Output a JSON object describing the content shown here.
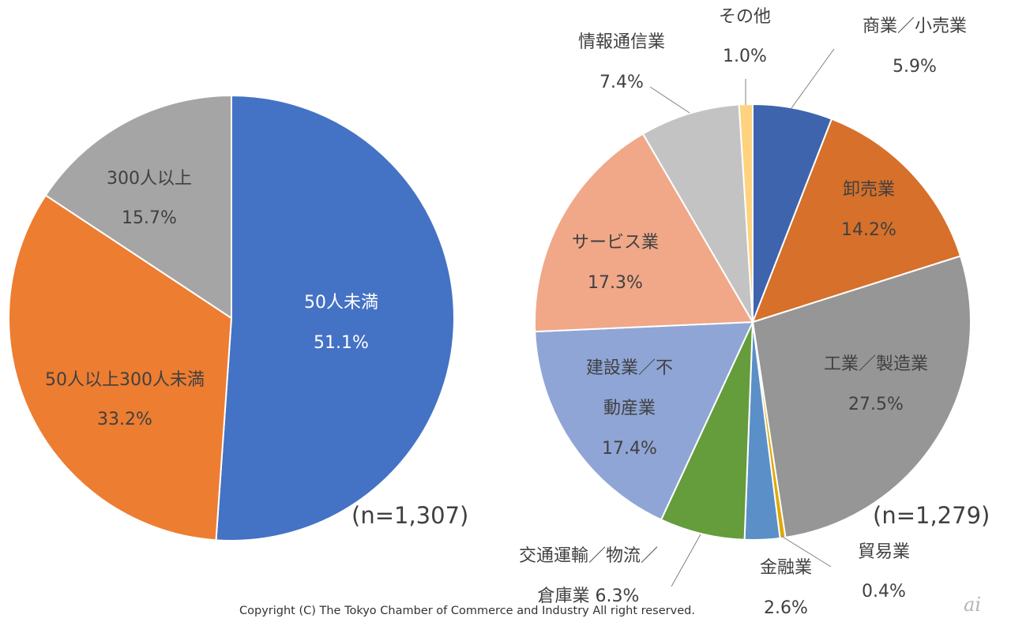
{
  "chart_data": [
    {
      "type": "pie",
      "sample_note": "(n=1,307)",
      "slices": [
        {
          "label": "50人未満",
          "value": 51.1,
          "value_label": "51.1%",
          "color": "#4472C4",
          "label_color": "#ffffff"
        },
        {
          "label": "50人以上300人未満",
          "value": 33.2,
          "value_label": "33.2%",
          "color": "#ED7D31",
          "label_color": "#404040"
        },
        {
          "label": "300人以上",
          "value": 15.7,
          "value_label": "15.7%",
          "color": "#A5A5A5",
          "label_color": "#404040"
        }
      ]
    },
    {
      "type": "pie",
      "sample_note": "(n=1,279)",
      "slices": [
        {
          "label": "商業／小売業",
          "value": 5.9,
          "value_label": "5.9%",
          "color": "#3E64AD",
          "label_color": "#404040",
          "outside": true
        },
        {
          "label": "卸売業",
          "value": 14.2,
          "value_label": "14.2%",
          "color": "#D6702A",
          "label_color": "#404040"
        },
        {
          "label": "工業／製造業",
          "value": 27.5,
          "value_label": "27.5%",
          "color": "#969696",
          "label_color": "#404040"
        },
        {
          "label": "貿易業",
          "value": 0.4,
          "value_label": "0.4%",
          "color": "#E0A800",
          "label_color": "#404040",
          "outside": true
        },
        {
          "label": "金融業",
          "value": 2.6,
          "value_label": "2.6%",
          "color": "#5B8FC8",
          "label_color": "#404040",
          "outside": true
        },
        {
          "label": "交通運輸／物流／倉庫業",
          "value": 6.3,
          "value_label": "6.3%",
          "color": "#659C3C",
          "label_color": "#404040",
          "outside": true
        },
        {
          "label": "建設業／不動産業",
          "value": 17.4,
          "value_label": "17.4%",
          "color": "#8FA5D6",
          "label_color": "#404040"
        },
        {
          "label": "サービス業",
          "value": 17.3,
          "value_label": "17.3%",
          "color": "#F0A888",
          "label_color": "#404040"
        },
        {
          "label": "情報通信業",
          "value": 7.4,
          "value_label": "7.4%",
          "color": "#C3C3C3",
          "label_color": "#404040",
          "outside": true
        },
        {
          "label": "その他",
          "value": 1.0,
          "value_label": "1.0%",
          "color": "#FFD27F",
          "label_color": "#404040",
          "outside": true
        }
      ]
    }
  ],
  "footer": {
    "copyright": "Copyright (C)  The Tokyo Chamber of Commerce and Industry All right reserved.",
    "logo": "ai"
  }
}
